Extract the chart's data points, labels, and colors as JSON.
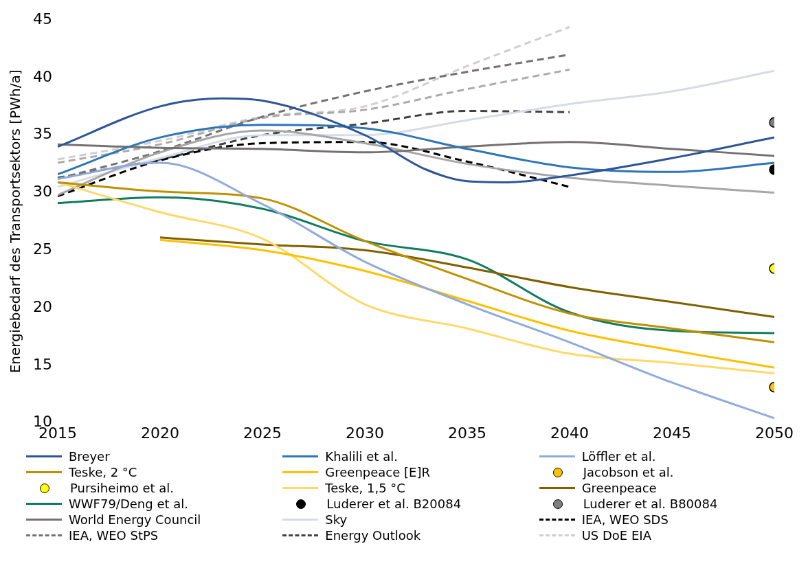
{
  "chart_data": {
    "type": "line",
    "ylabel": "Energiebedarf des Transportsektors [PWh/a]",
    "x": [
      2015,
      2020,
      2025,
      2030,
      2035,
      2040,
      2045,
      2050
    ],
    "xlim": [
      2015,
      2050
    ],
    "xticks": [
      2015,
      2020,
      2025,
      2030,
      2035,
      2040,
      2045,
      2050
    ],
    "ylim": [
      10,
      45
    ],
    "yticks": [
      10,
      15,
      20,
      25,
      30,
      35,
      40,
      45
    ],
    "grid": false,
    "legend": "bottom",
    "marker": "none",
    "line_style": "solid",
    "series": [
      {
        "name": "Breyer",
        "color": "#2f5597",
        "x": [
          2015,
          2020,
          2023,
          2025,
          2030,
          2033,
          2035,
          2037,
          2040,
          2045,
          2050
        ],
        "values": [
          34.0,
          37.5,
          38.2,
          38.0,
          35.0,
          32.0,
          31.0,
          30.9,
          31.5,
          33.0,
          34.8
        ]
      },
      {
        "name": "Khalili et al.",
        "color": "#2e75b6",
        "values": [
          31.6,
          34.8,
          35.9,
          35.6,
          33.8,
          32.2,
          31.8,
          32.6
        ]
      },
      {
        "name": "Löffler et al.",
        "color": "#8faadc",
        "values": [
          31.2,
          32.6,
          29.0,
          24.0,
          20.3,
          17.0,
          13.5,
          10.4
        ]
      },
      {
        "name": "Teske, 2 °C",
        "color": "#bf9000",
        "values": [
          30.9,
          30.1,
          29.5,
          25.8,
          22.5,
          19.5,
          18.2,
          17.0
        ]
      },
      {
        "name": "Greenpeace [E]R",
        "color": "#ffc000",
        "values": [
          null,
          25.9,
          25.0,
          23.2,
          20.6,
          18.0,
          16.3,
          14.8
        ]
      },
      {
        "name": "Jacobson et al.",
        "type": "scatter",
        "marker": "circle",
        "color": "#ffc000",
        "x": [
          2050
        ],
        "values": [
          13.1
        ]
      },
      {
        "name": "Pursiheimo et al.",
        "type": "scatter",
        "marker": "circle",
        "color": "#ffff00",
        "x": [
          2050
        ],
        "values": [
          23.4
        ]
      },
      {
        "name": "Teske, 1,5 °C",
        "color": "#ffd966",
        "values": [
          30.9,
          28.3,
          26.0,
          20.3,
          18.2,
          16.0,
          15.2,
          14.3
        ]
      },
      {
        "name": "Greenpeace",
        "color": "#7f6000",
        "values": [
          null,
          26.1,
          25.5,
          25.0,
          23.5,
          21.8,
          20.5,
          19.2
        ]
      },
      {
        "name": "WWF79/Deng et al.",
        "color": "#107c5f",
        "values": [
          29.1,
          29.6,
          28.6,
          25.8,
          24.2,
          19.6,
          18.0,
          17.8
        ]
      },
      {
        "name": "Luderer et al. B20084",
        "type": "scatter",
        "marker": "circle",
        "color": "#000000",
        "x": [
          2050
        ],
        "values": [
          32.0
        ]
      },
      {
        "name": "Luderer et al. B80084",
        "type": "scatter",
        "marker": "circle",
        "color": "#7f7f7f",
        "x": [
          2050
        ],
        "values": [
          36.1
        ]
      },
      {
        "name": "World Energy Council",
        "color": "#767171",
        "values": [
          34.2,
          33.9,
          33.8,
          33.5,
          34.0,
          34.4,
          33.8,
          33.2
        ]
      },
      {
        "color": "#a6a6a6",
        "values": [
          29.8,
          33.5,
          35.4,
          34.3,
          32.5,
          31.3,
          30.6,
          30.0
        ]
      },
      {
        "name": "Sky",
        "color": "#d6dce5",
        "values": [
          30.5,
          33.0,
          35.0,
          35.0,
          36.3,
          37.7,
          38.8,
          40.6
        ]
      },
      {
        "name": "IEA, WEO SDS",
        "color": "#000000",
        "line_style": "dashed",
        "x": [
          2015,
          2020,
          2025,
          2030,
          2035,
          2040
        ],
        "values": [
          29.7,
          32.8,
          34.3,
          34.4,
          32.7,
          30.5
        ]
      },
      {
        "name": "IEA, WEO StPS",
        "color": "#767171",
        "line_style": "dashed",
        "x": [
          2015,
          2020,
          2025,
          2030,
          2035,
          2040
        ],
        "values": [
          31.2,
          33.6,
          36.6,
          38.8,
          40.5,
          42.0
        ]
      },
      {
        "name": "Energy Outlook",
        "color": "#404040",
        "line_style": "dashed",
        "x": [
          2015,
          2020,
          2025,
          2030,
          2035,
          2040
        ],
        "values": [
          31.3,
          32.9,
          35.0,
          36.0,
          37.1,
          37.0
        ]
      },
      {
        "color": "#aeaaaa",
        "line_style": "dashed",
        "x": [
          2015,
          2020,
          2025,
          2030,
          2035,
          2040
        ],
        "values": [
          32.6,
          34.2,
          36.5,
          37.2,
          39.0,
          40.7
        ]
      },
      {
        "name": "US DoE EIA",
        "color": "#d0cece",
        "line_style": "dashed",
        "x": [
          2015,
          2020,
          2025,
          2030,
          2035,
          2040
        ],
        "values": [
          32.9,
          34.5,
          36.6,
          37.5,
          41.0,
          44.4
        ]
      }
    ]
  }
}
